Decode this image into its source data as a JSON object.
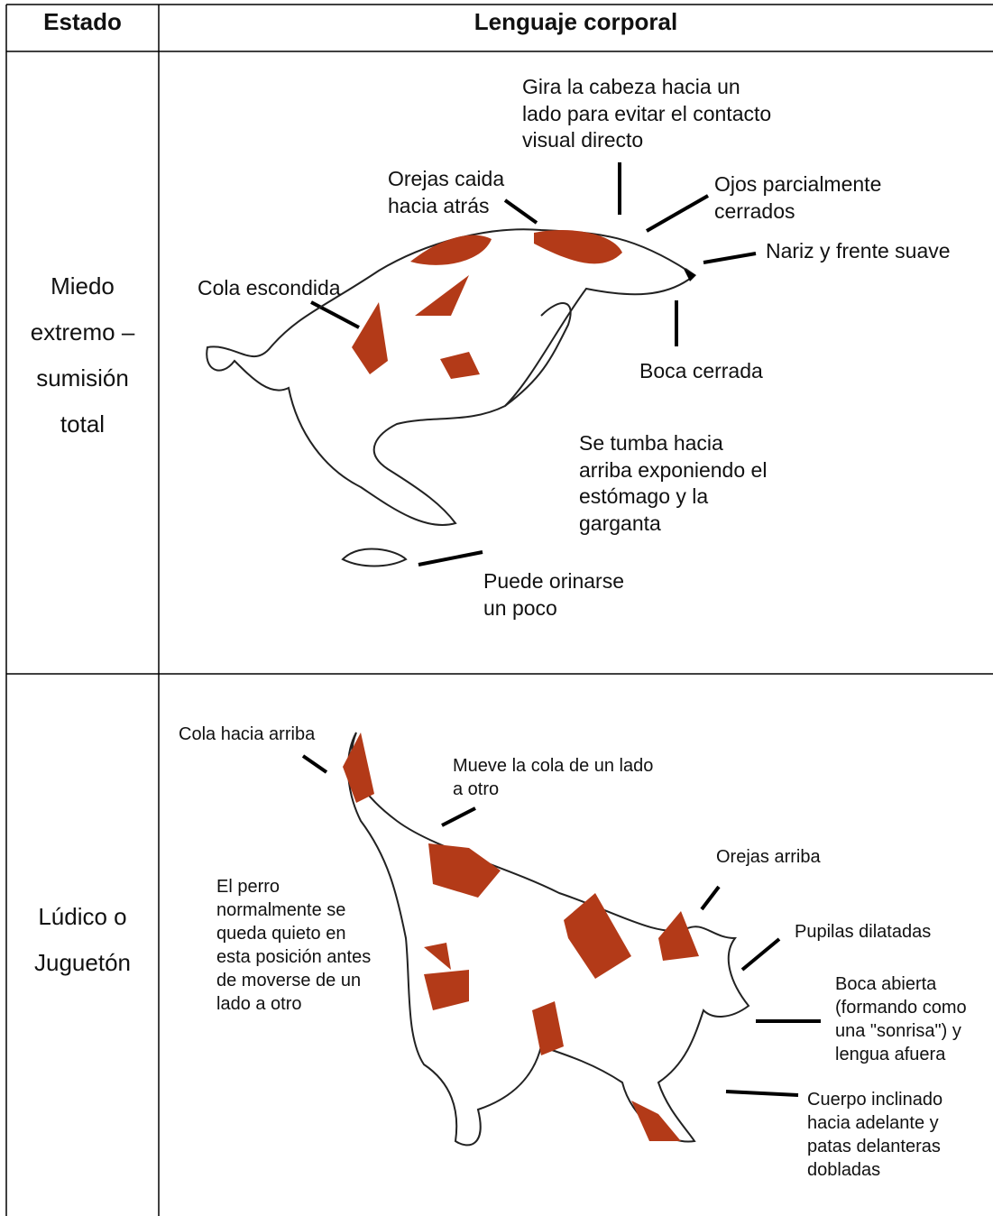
{
  "table": {
    "header": [
      "Estado",
      "Lenguaje corporal"
    ],
    "rows": [
      {
        "state": [
          "Miedo",
          "extremo –",
          "sumisión",
          "total"
        ],
        "annotations": [
          [
            "Gira la cabeza hacia un",
            "lado para evitar el contacto",
            "visual directo"
          ],
          [
            "Orejas caida",
            "hacia atrás"
          ],
          [
            "Ojos parcialmente",
            "cerrados"
          ],
          [
            "Nariz y frente suave"
          ],
          [
            "Cola escondida"
          ],
          [
            "Boca cerrada"
          ],
          [
            "Se tumba hacia",
            "arriba exponiendo el",
            "estómago y la",
            "garganta"
          ],
          [
            "Puede orinarse",
            "un poco"
          ]
        ]
      },
      {
        "state": [
          "Lúdico o",
          "Juguetón"
        ],
        "annotations": [
          [
            "Cola hacia arriba"
          ],
          [
            "Mueve la cola de un lado",
            "a otro"
          ],
          [
            "Orejas arriba"
          ],
          [
            "El perro",
            "normalmente se",
            "queda quieto en",
            "esta posición antes",
            "de moverse de un",
            "lado a otro"
          ],
          [
            "Pupilas dilatadas"
          ],
          [
            "Boca abierta",
            "(formando como",
            "una \"sonrisa\") y",
            "lengua afuera"
          ],
          [
            "Cuerpo inclinado",
            "hacia adelante y",
            "patas delanteras",
            "dobladas"
          ]
        ]
      }
    ]
  }
}
